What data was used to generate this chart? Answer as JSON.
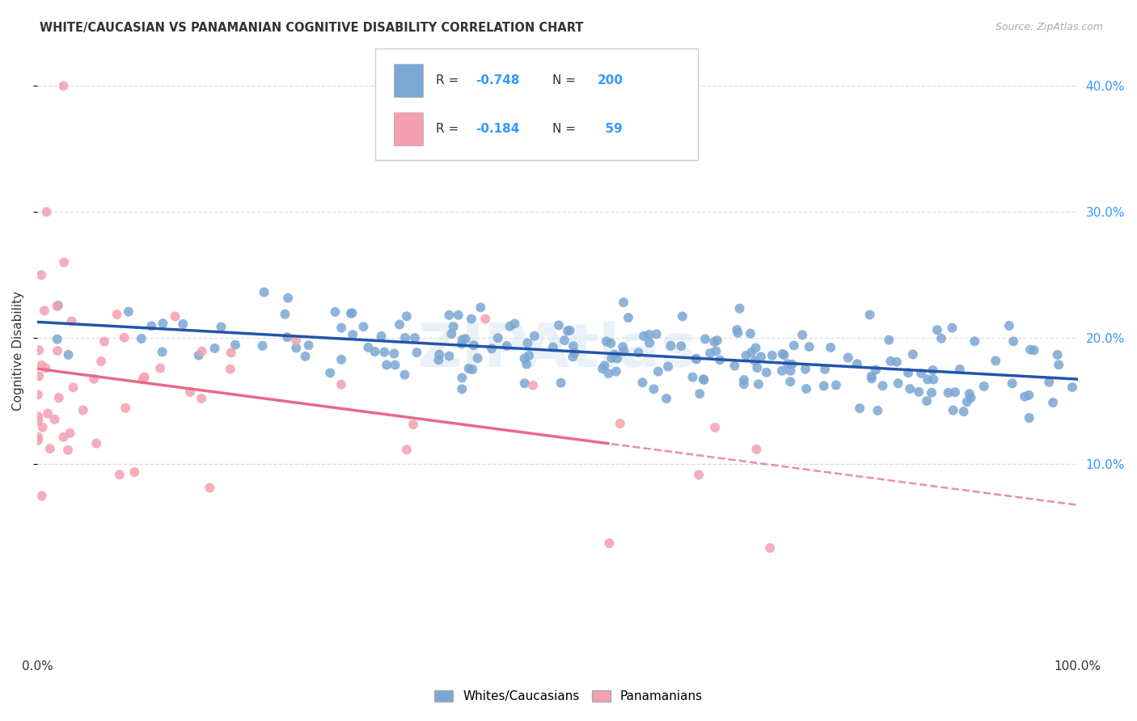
{
  "title": "WHITE/CAUCASIAN VS PANAMANIAN COGNITIVE DISABILITY CORRELATION CHART",
  "source": "Source: ZipAtlas.com",
  "ylabel": "Cognitive Disability",
  "legend_label_blue": "Whites/Caucasians",
  "legend_label_pink": "Panamanians",
  "blue_R": -0.748,
  "blue_N": 200,
  "pink_R": -0.184,
  "pink_N": 59,
  "blue_color": "#7BA7D4",
  "pink_color": "#F4A0B0",
  "blue_line_color": "#2255AA",
  "pink_line_color": "#E8698A",
  "watermark": "ZIPAtlas",
  "background_color": "#ffffff",
  "grid_color": "#dddddd",
  "xlim": [
    0,
    1.0
  ],
  "ylim": [
    -0.05,
    0.43
  ],
  "yticks": [
    0.1,
    0.2,
    0.3,
    0.4
  ],
  "ytick_labels": [
    "10.0%",
    "20.0%",
    "30.0%",
    "40.0%"
  ],
  "xticks": [
    0.0,
    0.1,
    0.2,
    0.3,
    0.4,
    0.5,
    0.6,
    0.7,
    0.8,
    0.9,
    1.0
  ],
  "xtick_labels": [
    "0.0%",
    "",
    "",
    "",
    "",
    "",
    "",
    "",
    "",
    "",
    "100.0%"
  ]
}
